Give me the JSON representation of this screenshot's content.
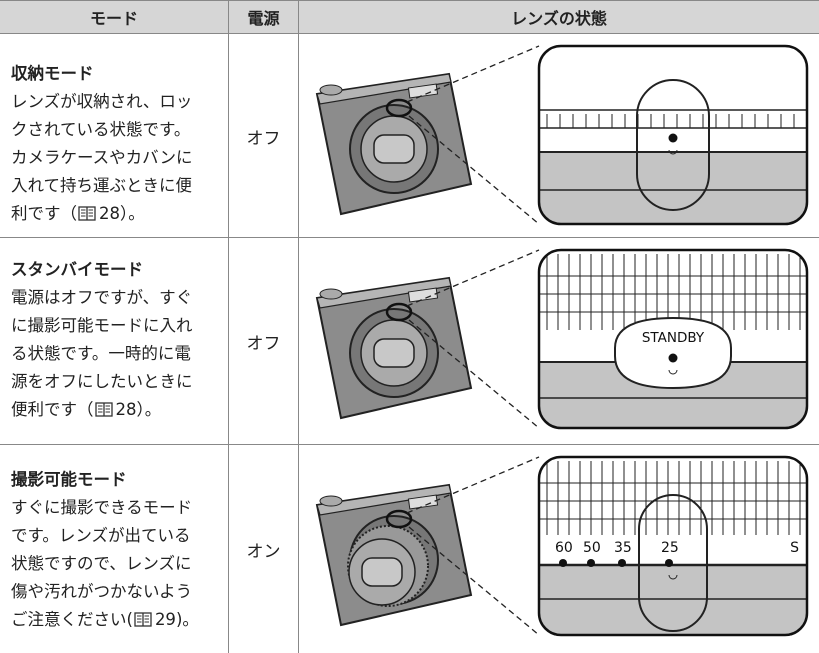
{
  "table": {
    "headers": [
      "モード",
      "電源",
      "レンズの状態"
    ],
    "rows": [
      {
        "mode": "収納モード",
        "lines": [
          "レンズが収納され、ロッ",
          "クされている状態です。",
          "カメラケースやカバンに",
          "入れて持ち運ぶときに便"
        ],
        "ref_line": {
          "before": "利です（",
          "page": "28",
          "after": "）。"
        },
        "power": "オフ"
      },
      {
        "mode": "スタンバイモード",
        "lines": [
          "電源はオフですが、すぐ",
          "に撮影可能モードに入れ",
          "る状態です。一時的に電",
          "源をオフにしたいときに"
        ],
        "ref_line": {
          "before": "便利です（",
          "page": "28",
          "after": "）。"
        },
        "power": "オフ",
        "lens_label": "STANDBY"
      },
      {
        "mode": "撮影可能モード",
        "lines": [
          "すぐに撮影できるモード",
          "です。レンズが出ている",
          "状態ですので、レンズに",
          "傷や汚れがつかないよう"
        ],
        "ref_line": {
          "before": "ご注意ください(",
          "page": "29",
          "after": ")。"
        },
        "power": "オン",
        "lens_labels": [
          "60",
          "50",
          "35",
          "25",
          "S"
        ]
      }
    ]
  }
}
